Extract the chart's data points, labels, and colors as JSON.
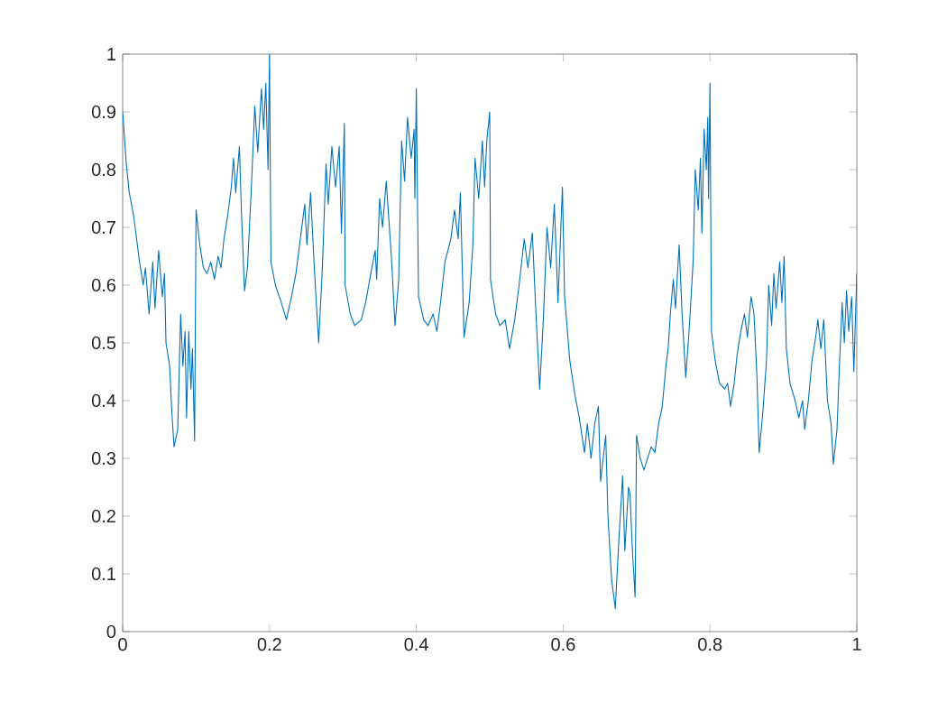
{
  "chart_data": {
    "type": "line",
    "xlim": [
      0,
      1
    ],
    "ylim": [
      0,
      1
    ],
    "xticks": [
      0,
      0.2,
      0.4,
      0.6,
      0.8,
      1
    ],
    "yticks": [
      0,
      0.1,
      0.2,
      0.3,
      0.4,
      0.5,
      0.6,
      0.7,
      0.8,
      0.9,
      1
    ],
    "grid": false,
    "series": [
      {
        "color": "#0072bd",
        "x": [
          0,
          0.005,
          0.009,
          0.015,
          0.02,
          0.023,
          0.028,
          0.031,
          0.036,
          0.041,
          0.044,
          0.049,
          0.054,
          0.057,
          0.059,
          0.064,
          0.067,
          0.07,
          0.075,
          0.079,
          0.082,
          0.085,
          0.087,
          0.09,
          0.093,
          0.095,
          0.098,
          0.1,
          0.105,
          0.11,
          0.115,
          0.12,
          0.125,
          0.13,
          0.134,
          0.138,
          0.143,
          0.148,
          0.151,
          0.154,
          0.159,
          0.162,
          0.166,
          0.17,
          0.175,
          0.18,
          0.184,
          0.189,
          0.192,
          0.195,
          0.198,
          0.2,
          0.202,
          0.208,
          0.216,
          0.223,
          0.23,
          0.236,
          0.243,
          0.248,
          0.251,
          0.256,
          0.261,
          0.267,
          0.272,
          0.277,
          0.28,
          0.285,
          0.29,
          0.295,
          0.298,
          0.302,
          0.303,
          0.31,
          0.316,
          0.325,
          0.331,
          0.338,
          0.344,
          0.346,
          0.35,
          0.354,
          0.359,
          0.366,
          0.371,
          0.376,
          0.38,
          0.384,
          0.388,
          0.393,
          0.397,
          0.398,
          0.4,
          0.403,
          0.41,
          0.416,
          0.423,
          0.428,
          0.433,
          0.439,
          0.447,
          0.452,
          0.457,
          0.46,
          0.465,
          0.472,
          0.477,
          0.48,
          0.485,
          0.49,
          0.493,
          0.496,
          0.5,
          0.501,
          0.508,
          0.514,
          0.521,
          0.527,
          0.534,
          0.54,
          0.547,
          0.552,
          0.558,
          0.563,
          0.568,
          0.573,
          0.578,
          0.583,
          0.588,
          0.593,
          0.599,
          0.602,
          0.609,
          0.616,
          0.622,
          0.629,
          0.633,
          0.638,
          0.643,
          0.648,
          0.651,
          0.658,
          0.661,
          0.666,
          0.671,
          0.676,
          0.681,
          0.684,
          0.689,
          0.691,
          0.694,
          0.698,
          0.7,
          0.705,
          0.71,
          0.715,
          0.72,
          0.725,
          0.73,
          0.735,
          0.74,
          0.743,
          0.746,
          0.75,
          0.753,
          0.758,
          0.762,
          0.767,
          0.772,
          0.777,
          0.78,
          0.784,
          0.787,
          0.789,
          0.792,
          0.795,
          0.797,
          0.798,
          0.8,
          0.802,
          0.807,
          0.813,
          0.82,
          0.824,
          0.828,
          0.833,
          0.837,
          0.842,
          0.847,
          0.851,
          0.856,
          0.86,
          0.864,
          0.867,
          0.872,
          0.877,
          0.88,
          0.884,
          0.887,
          0.89,
          0.895,
          0.898,
          0.901,
          0.904,
          0.909,
          0.916,
          0.921,
          0.926,
          0.929,
          0.934,
          0.939,
          0.944,
          0.947,
          0.951,
          0.955,
          0.96,
          0.965,
          0.968,
          0.973,
          0.976,
          0.98,
          0.983,
          0.986,
          0.989,
          0.993,
          0.996,
          1
        ],
        "values": [
          0.9,
          0.81,
          0.76,
          0.72,
          0.67,
          0.64,
          0.6,
          0.63,
          0.55,
          0.64,
          0.56,
          0.66,
          0.58,
          0.62,
          0.5,
          0.46,
          0.38,
          0.32,
          0.35,
          0.55,
          0.46,
          0.52,
          0.37,
          0.52,
          0.42,
          0.49,
          0.33,
          0.73,
          0.67,
          0.63,
          0.62,
          0.64,
          0.61,
          0.65,
          0.63,
          0.68,
          0.72,
          0.77,
          0.82,
          0.76,
          0.84,
          0.72,
          0.59,
          0.63,
          0.76,
          0.91,
          0.83,
          0.94,
          0.87,
          0.95,
          0.8,
          1,
          0.64,
          0.6,
          0.57,
          0.54,
          0.58,
          0.62,
          0.69,
          0.74,
          0.67,
          0.76,
          0.63,
          0.5,
          0.63,
          0.81,
          0.74,
          0.84,
          0.77,
          0.84,
          0.69,
          0.88,
          0.6,
          0.55,
          0.53,
          0.54,
          0.57,
          0.62,
          0.66,
          0.61,
          0.75,
          0.7,
          0.78,
          0.65,
          0.53,
          0.61,
          0.85,
          0.78,
          0.89,
          0.82,
          0.87,
          0.75,
          0.94,
          0.58,
          0.54,
          0.53,
          0.55,
          0.52,
          0.57,
          0.64,
          0.68,
          0.73,
          0.68,
          0.76,
          0.51,
          0.57,
          0.67,
          0.82,
          0.75,
          0.85,
          0.77,
          0.85,
          0.9,
          0.61,
          0.55,
          0.53,
          0.54,
          0.49,
          0.54,
          0.6,
          0.68,
          0.63,
          0.69,
          0.55,
          0.42,
          0.54,
          0.7,
          0.63,
          0.74,
          0.57,
          0.77,
          0.58,
          0.47,
          0.41,
          0.37,
          0.31,
          0.36,
          0.3,
          0.36,
          0.39,
          0.26,
          0.34,
          0.2,
          0.09,
          0.04,
          0.16,
          0.27,
          0.14,
          0.25,
          0.24,
          0.15,
          0.06,
          0.34,
          0.3,
          0.28,
          0.3,
          0.32,
          0.31,
          0.36,
          0.39,
          0.46,
          0.49,
          0.55,
          0.61,
          0.56,
          0.67,
          0.55,
          0.44,
          0.53,
          0.64,
          0.8,
          0.73,
          0.82,
          0.69,
          0.87,
          0.8,
          0.89,
          0.75,
          0.95,
          0.52,
          0.47,
          0.43,
          0.42,
          0.43,
          0.39,
          0.43,
          0.48,
          0.52,
          0.55,
          0.51,
          0.58,
          0.55,
          0.44,
          0.31,
          0.38,
          0.47,
          0.6,
          0.53,
          0.62,
          0.56,
          0.64,
          0.57,
          0.65,
          0.49,
          0.43,
          0.4,
          0.37,
          0.4,
          0.35,
          0.4,
          0.47,
          0.51,
          0.54,
          0.49,
          0.54,
          0.4,
          0.36,
          0.29,
          0.35,
          0.45,
          0.57,
          0.5,
          0.59,
          0.52,
          0.58,
          0.45,
          0.62
        ]
      }
    ]
  }
}
